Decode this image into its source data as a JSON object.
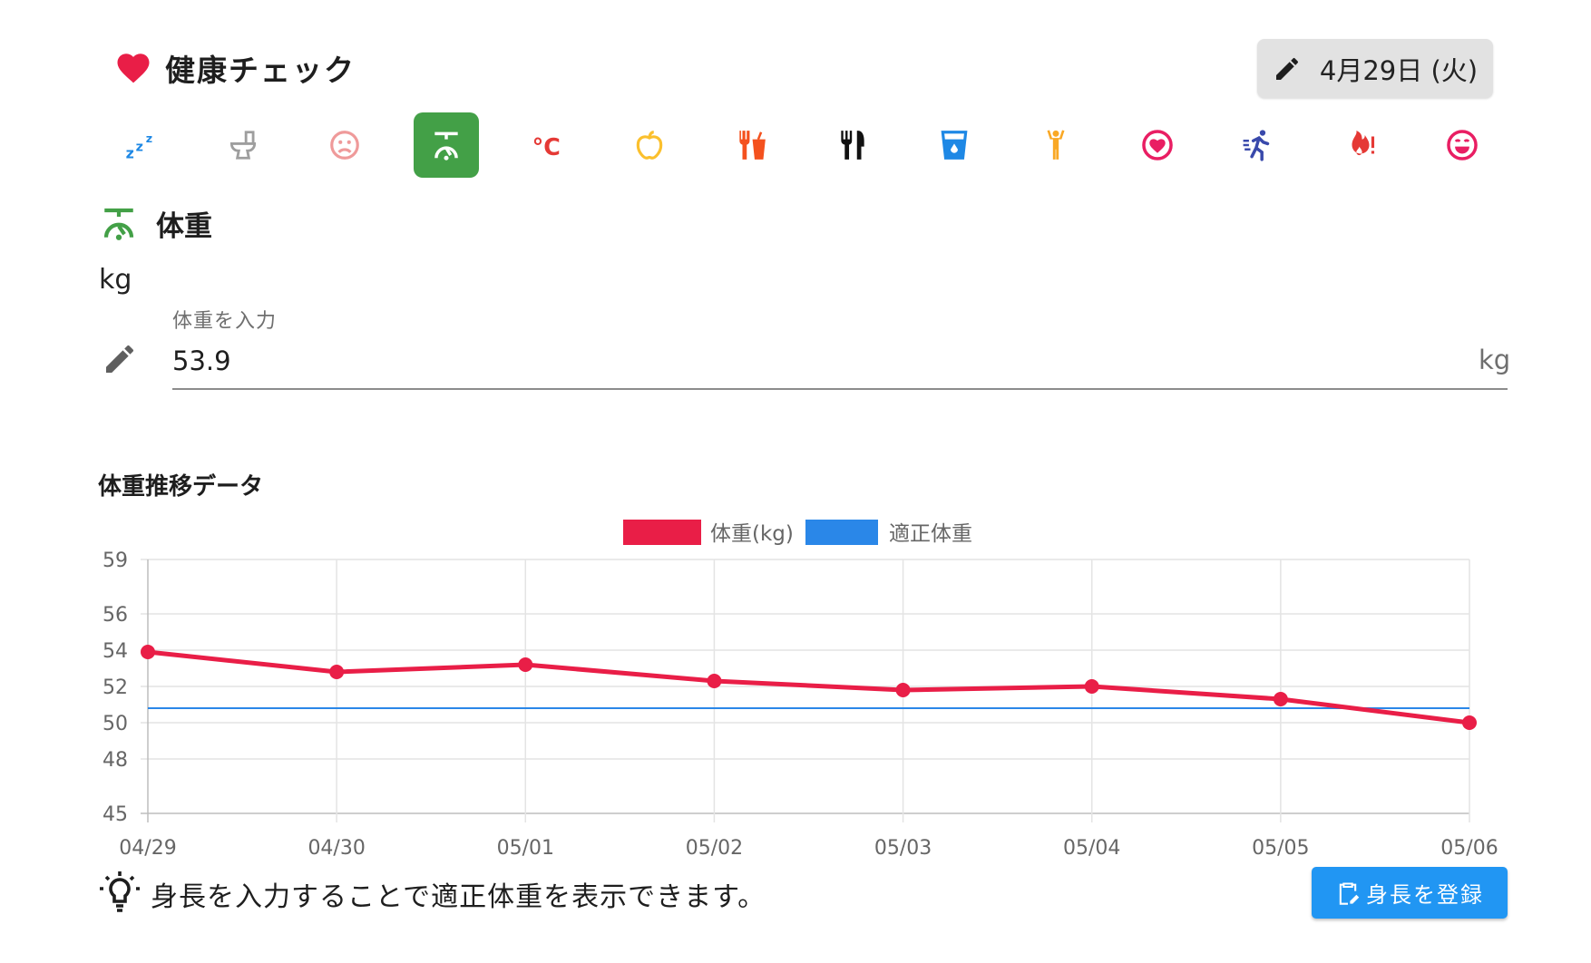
{
  "header": {
    "title": "健康チェック",
    "title_icon": "heart-icon",
    "date_button": {
      "label": "4月29日 (火)",
      "icon": "pencil-icon"
    }
  },
  "category_tabs": [
    {
      "icon": "sleep-zzz-icon",
      "color": "#1e88e5",
      "active": false
    },
    {
      "icon": "toilet-icon",
      "color": "#9e9e9e",
      "active": false
    },
    {
      "icon": "face-sad-icon",
      "color": "#ef9a9a",
      "active": false
    },
    {
      "icon": "weight-scale-icon",
      "color": "#ffffff",
      "active": true
    },
    {
      "icon": "temperature-celsius-icon",
      "color": "#e53935",
      "active": false
    },
    {
      "icon": "apple-icon",
      "color": "#fbc02d",
      "active": false
    },
    {
      "icon": "fast-food-icon",
      "color": "#f4511e",
      "active": false
    },
    {
      "icon": "silverware-icon",
      "color": "#111111",
      "active": false
    },
    {
      "icon": "water-cup-icon",
      "color": "#1e88e5",
      "active": false
    },
    {
      "icon": "human-stretch-icon",
      "color": "#f9a825",
      "active": false
    },
    {
      "icon": "heart-circle-icon",
      "color": "#e91e63",
      "active": false
    },
    {
      "icon": "run-icon",
      "color": "#3949ab",
      "active": false
    },
    {
      "icon": "fire-alert-icon",
      "color": "#e53935",
      "active": false
    },
    {
      "icon": "emoticon-happy-icon",
      "color": "#e91e63",
      "active": false
    }
  ],
  "section": {
    "icon": "weight-scale-icon",
    "title": "体重",
    "unit": "kg",
    "input": {
      "label": "体重を入力",
      "value": "53.9",
      "suffix": "kg"
    }
  },
  "chart_heading": "体重推移データ",
  "chart_data": {
    "type": "line",
    "categories": [
      "04/29",
      "04/30",
      "05/01",
      "05/02",
      "05/03",
      "05/04",
      "05/05",
      "05/06"
    ],
    "series": [
      {
        "name": "体重(kg)",
        "values": [
          53.9,
          52.8,
          53.2,
          52.3,
          51.8,
          52.0,
          51.3,
          50.0
        ]
      },
      {
        "name": "適正体重",
        "values": [
          50.8,
          50.8,
          50.8,
          50.8,
          50.8,
          50.8,
          50.8,
          50.8
        ]
      }
    ],
    "y_ticks": [
      59,
      56,
      54,
      52,
      50,
      48,
      45
    ],
    "ylim": [
      45,
      59
    ],
    "grid": true,
    "legend": "top-center",
    "colors": {
      "weight": "#e91e47",
      "ideal": "#2a87e8"
    }
  },
  "tip": {
    "icon": "lightbulb-icon",
    "text": "身長を入力することで適正体重を表示できます。"
  },
  "register_button": {
    "label": "身長を登録",
    "icon": "clipboard-edit-icon",
    "color": "#2196f3"
  }
}
